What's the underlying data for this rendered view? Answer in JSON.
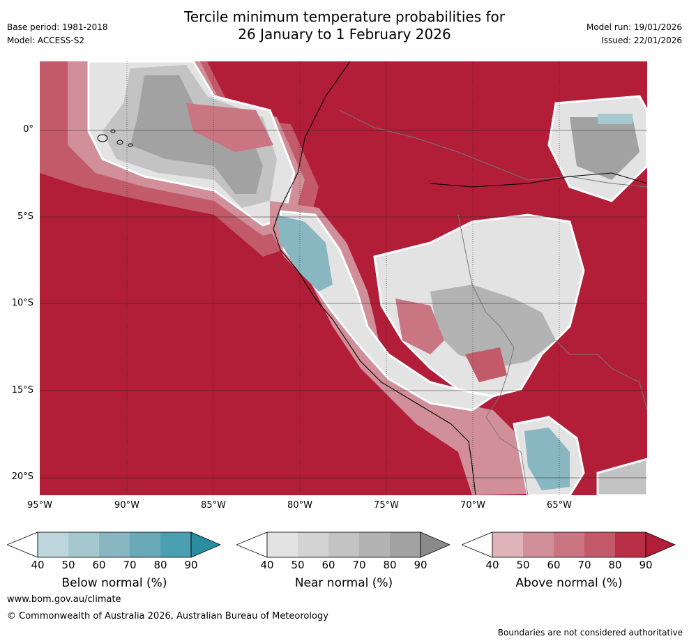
{
  "title": {
    "line1": "Tercile minimum temperature probabilities for",
    "line2": "26 January to 1 February 2026"
  },
  "meta": {
    "base_period": "Base period: 1981-2018",
    "model": "Model: ACCESS-S2",
    "model_run": "Model run: 19/01/2026",
    "issued": "Issued: 22/01/2026"
  },
  "axes": {
    "lat_labels": [
      "0°",
      "5°S",
      "10°S",
      "15°S",
      "20°S"
    ],
    "lon_labels": [
      "95°W",
      "90°W",
      "85°W",
      "80°W",
      "75°W",
      "70°W",
      "65°W"
    ]
  },
  "colorbars": [
    {
      "label": "Below normal (%)",
      "ticks": [
        "40",
        "50",
        "60",
        "70",
        "80",
        "90"
      ],
      "colors": [
        "#ffffff",
        "#bdd6db",
        "#a5c7ce",
        "#88b6c1",
        "#6aa9b6",
        "#4aa0b0",
        "#2a8ea0"
      ]
    },
    {
      "label": "Near normal (%)",
      "ticks": [
        "40",
        "50",
        "60",
        "70",
        "80",
        "90"
      ],
      "colors": [
        "#ffffff",
        "#e3e3e3",
        "#d3d3d3",
        "#c3c3c3",
        "#b3b3b3",
        "#a2a2a2",
        "#8a8a8a"
      ]
    },
    {
      "label": "Above normal (%)",
      "ticks": [
        "40",
        "50",
        "60",
        "70",
        "80",
        "90"
      ],
      "colors": [
        "#ffffff",
        "#deb3b9",
        "#d08f99",
        "#c97582",
        "#c25a69",
        "#b72e45",
        "#b21d38"
      ]
    }
  ],
  "footer": {
    "website": "www.bom.gov.au/climate",
    "copyright": "© Commonwealth of Australia 2026, Australian Bureau of Meteorology",
    "disclaimer": "Boundaries are not considered authoritative"
  }
}
